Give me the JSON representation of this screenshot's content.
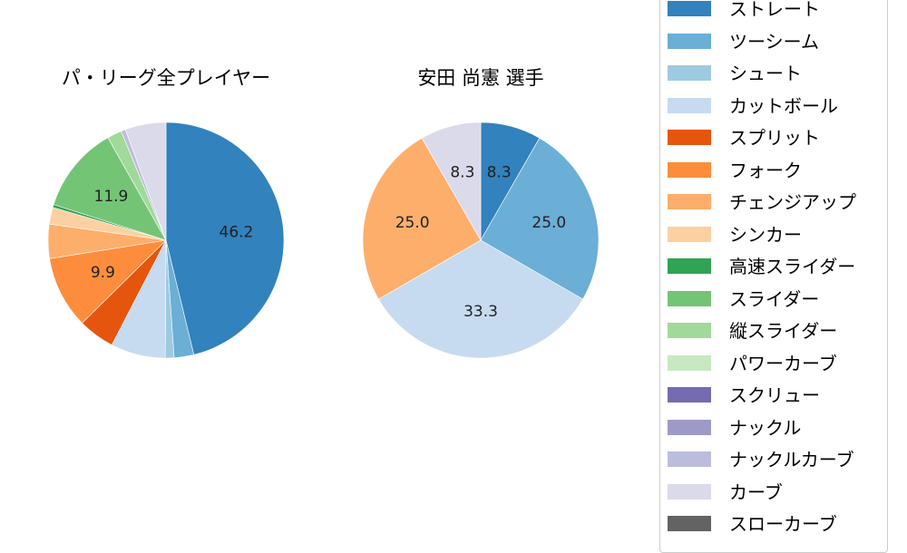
{
  "chart_data": [
    {
      "type": "pie",
      "title": "パ・リーグ全プレイヤー",
      "categories": [
        "ストレート",
        "ツーシーム",
        "シュート",
        "カットボール",
        "スプリット",
        "フォーク",
        "チェンジアップ",
        "シンカー",
        "高速スライダー",
        "スライダー",
        "縦スライダー",
        "パワーカーブ",
        "スクリュー",
        "ナックル",
        "ナックルカーブ",
        "カーブ",
        "スローカーブ"
      ],
      "values": [
        46.2,
        2.7,
        1.2,
        7.5,
        5.0,
        9.9,
        4.7,
        2.3,
        0.4,
        11.9,
        2.0,
        0.0,
        0.0,
        0.0,
        0.6,
        5.6,
        0.0
      ],
      "labels_shown": {
        "ストレート": "46.2",
        "フォーク": "9.9",
        "スライダー": "11.9"
      },
      "start_angle": 90,
      "direction": "clockwise"
    },
    {
      "type": "pie",
      "title": "安田 尚憲  選手",
      "categories": [
        "ストレート",
        "ツーシーム",
        "カットボール",
        "チェンジアップ",
        "カーブ"
      ],
      "values": [
        8.3,
        25.0,
        33.3,
        25.0,
        8.3
      ],
      "labels_shown": {
        "ストレート": "8.3",
        "ツーシーム": "25.0",
        "カットボール": "33.3",
        "チェンジアップ": "25.0",
        "カーブ": "8.3"
      },
      "start_angle": 90,
      "direction": "clockwise"
    }
  ],
  "titles": {
    "left": "パ・リーグ全プレイヤー",
    "right": "安田 尚憲  選手"
  },
  "legend": [
    {
      "label": "ストレート",
      "color": "#3182bd"
    },
    {
      "label": "ツーシーム",
      "color": "#6baed6"
    },
    {
      "label": "シュート",
      "color": "#9ecae1"
    },
    {
      "label": "カットボール",
      "color": "#c6dbef"
    },
    {
      "label": "スプリット",
      "color": "#e6550d"
    },
    {
      "label": "フォーク",
      "color": "#fd8d3c"
    },
    {
      "label": "チェンジアップ",
      "color": "#fdae6b"
    },
    {
      "label": "シンカー",
      "color": "#fdd0a2"
    },
    {
      "label": "高速スライダー",
      "color": "#31a354"
    },
    {
      "label": "スライダー",
      "color": "#74c476"
    },
    {
      "label": "縦スライダー",
      "color": "#a1d99b"
    },
    {
      "label": "パワーカーブ",
      "color": "#c7e9c0"
    },
    {
      "label": "スクリュー",
      "color": "#756bb1"
    },
    {
      "label": "ナックル",
      "color": "#9e9ac8"
    },
    {
      "label": "ナックルカーブ",
      "color": "#bcbddc"
    },
    {
      "label": "カーブ",
      "color": "#dadaeb"
    },
    {
      "label": "スローカーブ",
      "color": "#636363"
    }
  ]
}
